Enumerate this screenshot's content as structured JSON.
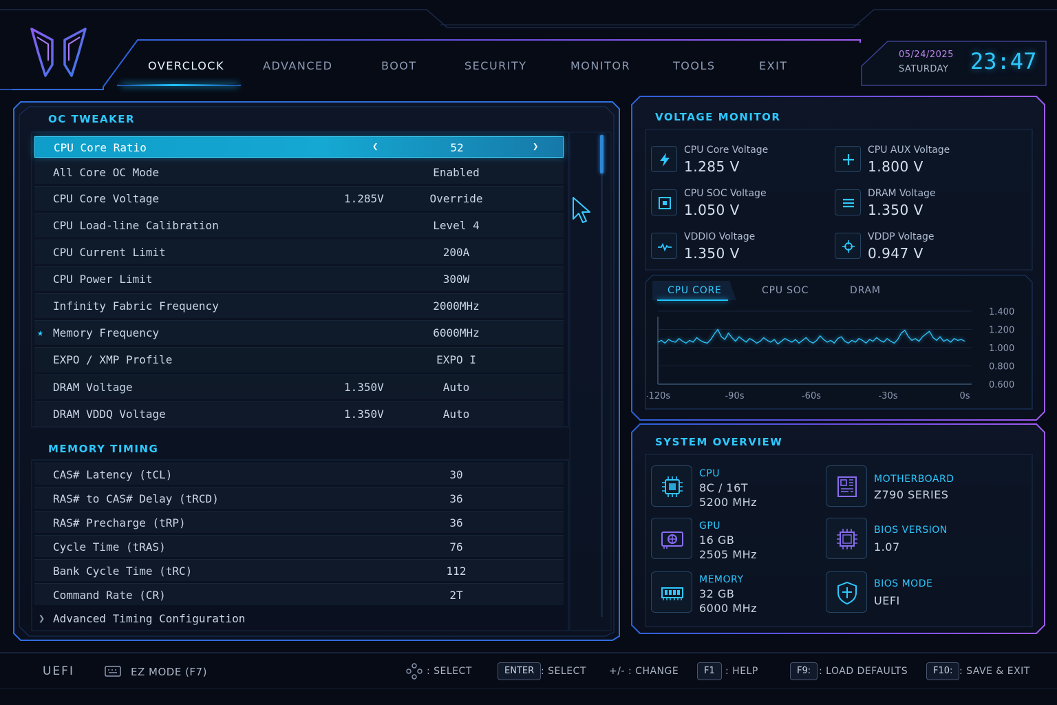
{
  "nav": {
    "tabs": [
      "OVERCLOCK",
      "ADVANCED",
      "BOOT",
      "SECURITY",
      "MONITOR",
      "TOOLS",
      "EXIT"
    ],
    "active": "OVERCLOCK"
  },
  "clock": {
    "date": "05/24/2025",
    "day": "SATURDAY",
    "time": "23:47"
  },
  "oc_tweaker": {
    "title": "OC TWEAKER",
    "rows": [
      {
        "label": "CPU Core Ratio",
        "sub": "",
        "value": "52"
      },
      {
        "label": "All Core OC Mode",
        "sub": "",
        "value": "Enabled"
      },
      {
        "label": "CPU Core Voltage",
        "sub": "1.285V",
        "value": "Override"
      },
      {
        "label": "CPU Load-line Calibration",
        "sub": "",
        "value": "Level 4"
      },
      {
        "label": "CPU Current Limit",
        "sub": "",
        "value": "200A"
      },
      {
        "label": "CPU Power Limit",
        "sub": "",
        "value": "300W"
      },
      {
        "label": "Infinity Fabric Frequency",
        "sub": "",
        "value": "2000MHz"
      },
      {
        "label": "Memory Frequency",
        "sub": "",
        "value": "6000MHz"
      },
      {
        "label": "EXPO / XMP Profile",
        "sub": "",
        "value": "EXPO I"
      },
      {
        "label": "DRAM Voltage",
        "sub": "1.350V",
        "value": "Auto"
      },
      {
        "label": "DRAM VDDQ Voltage",
        "sub": "1.350V",
        "value": "Auto"
      }
    ]
  },
  "memory_timing": {
    "title": "MEMORY TIMING",
    "rows": [
      {
        "label": "CAS# Latency (tCL)",
        "value": "30"
      },
      {
        "label": "RAS# to CAS# Delay (tRCD)",
        "value": "36"
      },
      {
        "label": "RAS# Precharge (tRP)",
        "value": "36"
      },
      {
        "label": "Cycle Time (tRAS)",
        "value": "76"
      },
      {
        "label": "Bank Cycle Time (tRC)",
        "value": "112"
      },
      {
        "label": "Command Rate (CR)",
        "value": "2T"
      }
    ],
    "advanced_link": "Advanced Timing Configuration"
  },
  "voltage_monitor": {
    "title": "VOLTAGE MONITOR",
    "items": [
      {
        "name": "CPU Core Voltage",
        "value": "1.285 V",
        "icon": "lightning-icon"
      },
      {
        "name": "CPU AUX Voltage",
        "value": "1.800 V",
        "icon": "plus-icon"
      },
      {
        "name": "CPU SOC Voltage",
        "value": "1.050 V",
        "icon": "chip-square-icon"
      },
      {
        "name": "DRAM Voltage",
        "value": "1.350 V",
        "icon": "lines-icon"
      },
      {
        "name": "VDDIO Voltage",
        "value": "1.350 V",
        "icon": "pulse-icon"
      },
      {
        "name": "VDDP Voltage",
        "value": "0.947 V",
        "icon": "crosshair-icon"
      }
    ]
  },
  "graph": {
    "tabs": [
      "CPU CORE",
      "CPU SOC",
      "DRAM"
    ],
    "active": "CPU CORE"
  },
  "chart_data": {
    "type": "line",
    "x_ticks": [
      "-120s",
      "-90s",
      "-60s",
      "-30s",
      "0s"
    ],
    "y_ticks": [
      "1.400",
      "1.200",
      "1.000",
      "0.800",
      "0.600"
    ],
    "xlim": [
      -120,
      0
    ],
    "ylim": [
      0.6,
      1.4
    ],
    "series": [
      {
        "values": [
          1.06,
          1.08,
          1.05,
          1.09,
          1.07,
          1.06,
          1.1,
          1.07,
          1.05,
          1.08,
          1.06,
          1.11,
          1.08,
          1.06,
          1.05,
          1.09,
          1.15,
          1.2,
          1.12,
          1.09,
          1.16,
          1.11,
          1.07,
          1.12,
          1.09,
          1.06,
          1.1,
          1.08,
          1.05,
          1.07,
          1.11,
          1.08,
          1.06,
          1.09,
          1.04,
          1.07,
          1.1,
          1.08,
          1.06,
          1.09,
          1.05,
          1.08,
          1.11,
          1.07,
          1.05,
          1.08,
          1.13,
          1.09,
          1.06,
          1.08,
          1.05,
          1.1,
          1.12,
          1.07,
          1.05,
          1.08,
          1.06,
          1.1,
          1.08,
          1.05,
          1.09,
          1.07,
          1.11,
          1.08,
          1.06,
          1.1,
          1.07,
          1.05,
          1.09,
          1.16,
          1.19,
          1.12,
          1.08,
          1.1,
          1.07,
          1.12,
          1.15,
          1.18,
          1.11,
          1.08,
          1.12,
          1.07,
          1.09,
          1.06,
          1.1,
          1.08,
          1.09,
          1.07
        ]
      }
    ]
  },
  "system_overview": {
    "title": "SYSTEM OVERVIEW",
    "cpu": {
      "title": "CPU",
      "lines": [
        "8C / 16T",
        "5200 MHz"
      ],
      "icon": "cpu-icon"
    },
    "gpu": {
      "title": "GPU",
      "lines": [
        "16 GB",
        "2505 MHz"
      ],
      "icon": "gpu-icon"
    },
    "memory": {
      "title": "MEMORY",
      "lines": [
        "32 GB",
        "6000 MHz"
      ],
      "icon": "memory-icon"
    },
    "motherboard": {
      "title": "MOTHERBOARD",
      "lines": [
        "Z790 SERIES"
      ],
      "icon": "motherboard-icon"
    },
    "bios_version": {
      "title": "BIOS VERSION",
      "lines": [
        "1.07"
      ],
      "icon": "bios-chip-icon"
    },
    "bios_mode": {
      "title": "BIOS MODE",
      "lines": [
        "UEFI"
      ],
      "icon": "shield-icon"
    }
  },
  "footer": {
    "mode": "UEFI",
    "ez_mode": "EZ MODE (F7)",
    "hints": [
      {
        "key": "",
        "label": ": SELECT"
      },
      {
        "key": "ENTER",
        "label": ": SELECT"
      },
      {
        "key": "+/-",
        "label": ": CHANGE"
      },
      {
        "key": "F1",
        "label": ": HELP"
      },
      {
        "key": "F9:",
        "label": ": LOAD DEFAULTS"
      },
      {
        "key": "F10:",
        "label": ": SAVE & EXIT"
      }
    ]
  },
  "colors": {
    "accent": "#2ec8ff",
    "purple": "#9a5cf0",
    "background": "#070b16"
  }
}
